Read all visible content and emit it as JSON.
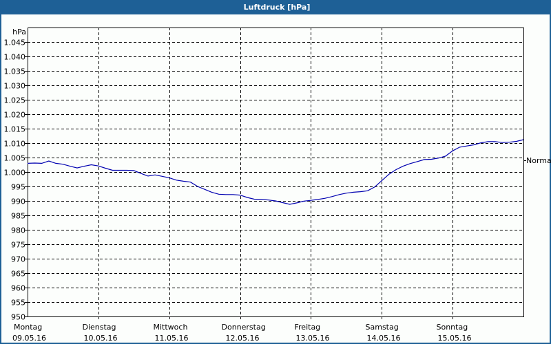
{
  "window": {
    "title": "Luftdruck [hPa]"
  },
  "chart": {
    "y_unit_label": "hPa",
    "normal_label": "Normal"
  },
  "chart_data": {
    "type": "line",
    "title": "Luftdruck [hPa]",
    "xlabel": "",
    "ylabel": "hPa",
    "ylim": [
      950,
      1050
    ],
    "yticks": [
      950,
      955,
      960,
      965,
      970,
      975,
      980,
      985,
      990,
      995,
      1000,
      1005,
      1010,
      1015,
      1020,
      1025,
      1030,
      1035,
      1040,
      1045
    ],
    "ytick_labels": [
      "950",
      "955",
      "960",
      "965",
      "970",
      "975",
      "980",
      "985",
      "990",
      "995",
      "1.000",
      "1.005",
      "1.010",
      "1.015",
      "1.020",
      "1.025",
      "1.030",
      "1.035",
      "1.040",
      "1.045"
    ],
    "x_categories": [
      {
        "day": "Montag",
        "date": "09.05.16"
      },
      {
        "day": "Dienstag",
        "date": "10.05.16"
      },
      {
        "day": "Mittwoch",
        "date": "11.05.16"
      },
      {
        "day": "Donnerstag",
        "date": "12.05.16"
      },
      {
        "day": "Freitag",
        "date": "13.05.16"
      },
      {
        "day": "Samstag",
        "date": "14.05.16"
      },
      {
        "day": "Sonntag",
        "date": "15.05.16"
      }
    ],
    "grid": true,
    "annotations": [
      {
        "text": "Normal",
        "y": 1000,
        "position": "right"
      }
    ],
    "series": [
      {
        "name": "Luftdruck",
        "color": "#0000b0",
        "x_days": [
          0.0,
          0.1,
          0.2,
          0.3,
          0.4,
          0.5,
          0.6,
          0.7,
          0.8,
          0.9,
          1.0,
          1.1,
          1.2,
          1.3,
          1.4,
          1.5,
          1.6,
          1.7,
          1.8,
          1.9,
          2.0,
          2.1,
          2.2,
          2.3,
          2.4,
          2.5,
          2.6,
          2.7,
          2.8,
          2.9,
          3.0,
          3.1,
          3.2,
          3.3,
          3.4,
          3.5,
          3.6,
          3.7,
          3.8,
          3.9,
          4.0,
          4.1,
          4.2,
          4.3,
          4.4,
          4.5,
          4.6,
          4.7,
          4.8,
          4.9,
          5.0,
          5.1,
          5.2,
          5.3,
          5.4,
          5.5,
          5.6,
          5.7,
          5.8,
          5.9,
          6.0,
          6.1,
          6.2,
          6.3,
          6.4,
          6.5,
          6.6,
          6.7,
          6.8,
          6.9,
          7.0
        ],
        "values": [
          1003.0,
          1003.1,
          1003.0,
          1003.8,
          1003.0,
          1002.7,
          1002.0,
          1001.4,
          1002.0,
          1002.5,
          1002.1,
          1001.3,
          1000.6,
          1000.6,
          1000.6,
          1000.5,
          999.5,
          998.6,
          999.0,
          998.5,
          998.0,
          997.2,
          996.8,
          996.5,
          995.0,
          994.0,
          993.0,
          992.3,
          992.2,
          992.2,
          992.0,
          991.2,
          990.6,
          990.5,
          990.3,
          990.0,
          989.4,
          988.8,
          989.3,
          989.9,
          990.2,
          990.5,
          990.9,
          991.5,
          992.2,
          992.7,
          993.0,
          993.2,
          993.5,
          994.8,
          997.0,
          999.2,
          1000.8,
          1002.0,
          1002.9,
          1003.6,
          1004.3,
          1004.4,
          1004.8,
          1005.5,
          1007.3,
          1008.6,
          1009.0,
          1009.4,
          1010.1,
          1010.5,
          1010.5,
          1010.2,
          1010.3,
          1010.6,
          1011.2
        ]
      }
    ]
  }
}
